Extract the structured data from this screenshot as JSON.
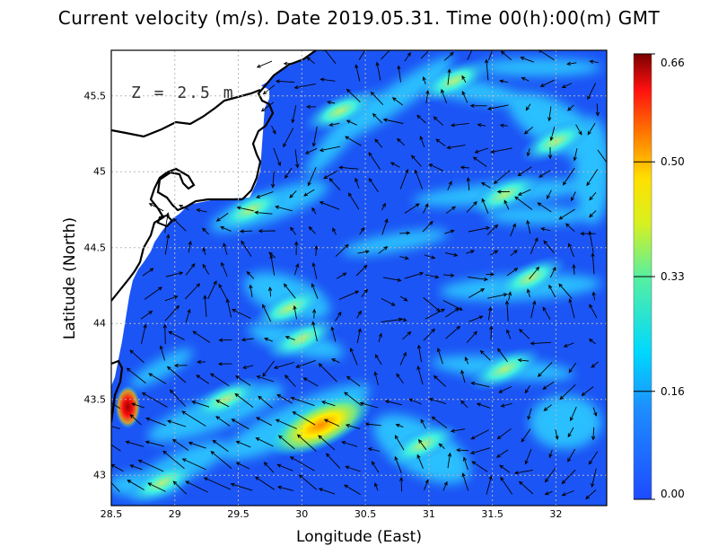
{
  "title": "Current velocity (m/s). Date 2019.05.31. Time 00(h):00(m) GMT",
  "depth_label": "Z = 2.5 m",
  "chart_data": {
    "type": "heatmap",
    "title": "Current velocity (m/s). Date 2019.05.31. Time 00(h):00(m) GMT",
    "xlabel": "Longitude (East)",
    "ylabel": "Latitude (North)",
    "xlim": [
      28.5,
      32.4
    ],
    "ylim": [
      42.8,
      45.8
    ],
    "x_ticks": [
      "28.5",
      "29",
      "29.5",
      "30",
      "30.5",
      "31",
      "31.5",
      "32"
    ],
    "y_ticks": [
      "43",
      "43.5",
      "44",
      "44.5",
      "45",
      "45.5"
    ],
    "grid": true,
    "colorbar": {
      "range": [
        0.0,
        0.66
      ],
      "ticks": [
        "0.00",
        "0.16",
        "0.33",
        "0.50",
        "0.66"
      ],
      "colors": [
        "#1e4bff",
        "#1e90ff",
        "#00e5ff",
        "#7cf07c",
        "#ffff00",
        "#ff7a00",
        "#ff1010",
        "#8b0000"
      ]
    },
    "hotspots": [
      {
        "lon": 30.15,
        "lat": 43.33,
        "speed": 0.5
      },
      {
        "lon": 28.63,
        "lat": 43.45,
        "speed": 0.66
      },
      {
        "lon": 30.95,
        "lat": 43.2,
        "speed": 0.33
      },
      {
        "lon": 29.9,
        "lat": 44.1,
        "speed": 0.33
      },
      {
        "lon": 30.0,
        "lat": 43.9,
        "speed": 0.3
      },
      {
        "lon": 32.0,
        "lat": 45.2,
        "speed": 0.3
      },
      {
        "lon": 31.6,
        "lat": 44.85,
        "speed": 0.3
      },
      {
        "lon": 30.3,
        "lat": 45.4,
        "speed": 0.28
      },
      {
        "lon": 29.6,
        "lat": 44.75,
        "speed": 0.35
      },
      {
        "lon": 28.9,
        "lat": 42.95,
        "speed": 0.3
      },
      {
        "lon": 31.8,
        "lat": 44.3,
        "speed": 0.28
      },
      {
        "lon": 31.6,
        "lat": 43.7,
        "speed": 0.26
      },
      {
        "lon": 29.4,
        "lat": 43.5,
        "speed": 0.22
      },
      {
        "lon": 31.2,
        "lat": 45.6,
        "speed": 0.26
      }
    ]
  }
}
